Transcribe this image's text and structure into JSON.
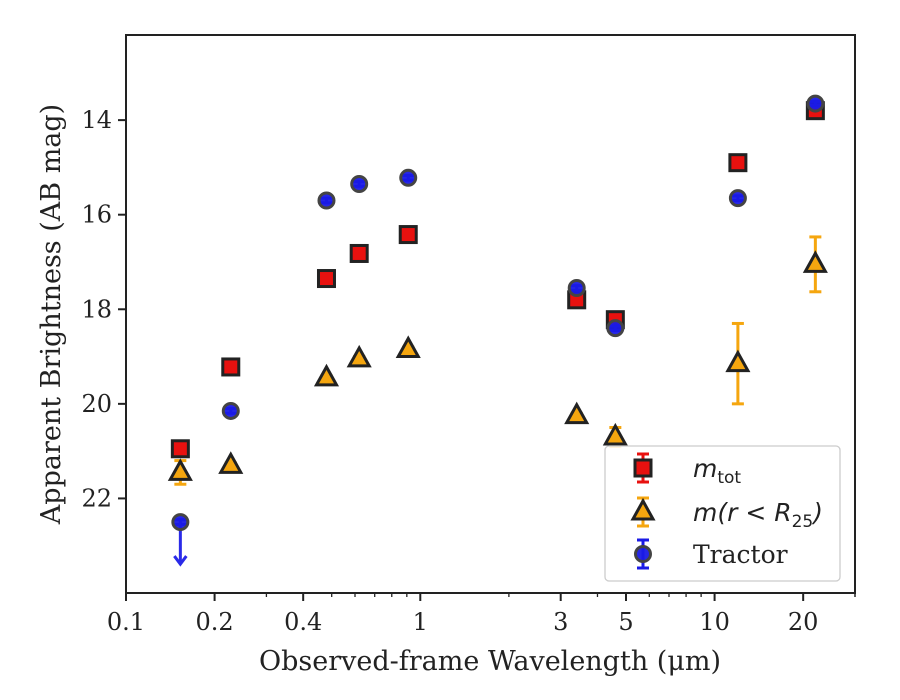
{
  "chart_data": {
    "type": "scatter",
    "xscale": "log",
    "yaxis_inverted": true,
    "xlim": [
      0.1,
      30
    ],
    "ylim": [
      24.0,
      12.2
    ],
    "xticks": [
      {
        "value": 0.1,
        "label": "0.1"
      },
      {
        "value": 0.2,
        "label": "0.2"
      },
      {
        "value": 0.4,
        "label": "0.4"
      },
      {
        "value": 1,
        "label": "1"
      },
      {
        "value": 3,
        "label": "3"
      },
      {
        "value": 5,
        "label": "5"
      },
      {
        "value": 10,
        "label": "10"
      },
      {
        "value": 20,
        "label": "20"
      }
    ],
    "yticks": [
      {
        "value": 14,
        "label": "14"
      },
      {
        "value": 16,
        "label": "16"
      },
      {
        "value": 18,
        "label": "18"
      },
      {
        "value": 20,
        "label": "20"
      },
      {
        "value": 22,
        "label": "22"
      }
    ],
    "xlabel": "Observed-frame Wavelength (μm)",
    "ylabel": "Apparent Brightness (AB mag)",
    "grid": false,
    "legend_position": "lower-right",
    "series": [
      {
        "name": "m_tot",
        "legend_main": "m",
        "legend_sub": "tot",
        "marker": "square",
        "color": "#e8110f",
        "edge_color": "#222222",
        "points": [
          {
            "x": 0.153,
            "y": 20.95,
            "err": 0.08
          },
          {
            "x": 0.227,
            "y": 19.22,
            "err": 0.05
          },
          {
            "x": 0.48,
            "y": 17.35,
            "err": 0.05
          },
          {
            "x": 0.62,
            "y": 16.82,
            "err": 0.05
          },
          {
            "x": 0.91,
            "y": 16.42,
            "err": 0.05
          },
          {
            "x": 3.4,
            "y": 17.8,
            "err": 0.08
          },
          {
            "x": 4.6,
            "y": 18.22,
            "err": 0.08
          },
          {
            "x": 12.0,
            "y": 14.9,
            "err": 0.08
          },
          {
            "x": 22.0,
            "y": 13.8,
            "err": 0.08
          }
        ]
      },
      {
        "name": "m(r < R_25)",
        "legend_main": "m(r < R",
        "legend_sub": "25",
        "legend_tail": ")",
        "marker": "triangle",
        "color": "#f5a60f",
        "edge_color": "#222222",
        "points": [
          {
            "x": 0.153,
            "y": 21.45,
            "err": 0.25
          },
          {
            "x": 0.227,
            "y": 21.3,
            "err": 0.05
          },
          {
            "x": 0.48,
            "y": 19.45,
            "err": 0.05
          },
          {
            "x": 0.62,
            "y": 19.05,
            "err": 0.05
          },
          {
            "x": 0.91,
            "y": 18.85,
            "err": 0.05
          },
          {
            "x": 3.4,
            "y": 20.25,
            "err": 0.05
          },
          {
            "x": 4.6,
            "y": 20.7,
            "err": 0.2
          },
          {
            "x": 12.0,
            "y": 19.15,
            "err": 0.85
          },
          {
            "x": 22.0,
            "y": 17.05,
            "err": 0.58
          }
        ]
      },
      {
        "name": "Tractor",
        "legend_main": "Tractor",
        "marker": "circle",
        "color": "#1a1ae6",
        "edge_color": "#444444",
        "upper_limit_arrow_color": "#2a2ae8",
        "points": [
          {
            "x": 0.153,
            "y": 22.5,
            "err": 0.05,
            "upper_limit": true
          },
          {
            "x": 0.227,
            "y": 20.15,
            "err": 0.05
          },
          {
            "x": 0.48,
            "y": 15.7,
            "err": 0.05
          },
          {
            "x": 0.62,
            "y": 15.35,
            "err": 0.05
          },
          {
            "x": 0.91,
            "y": 15.22,
            "err": 0.05
          },
          {
            "x": 3.4,
            "y": 17.55,
            "err": 0.05
          },
          {
            "x": 4.6,
            "y": 18.4,
            "err": 0.05
          },
          {
            "x": 12.0,
            "y": 15.65,
            "err": 0.05
          },
          {
            "x": 22.0,
            "y": 13.65,
            "err": 0.05
          }
        ]
      }
    ]
  }
}
